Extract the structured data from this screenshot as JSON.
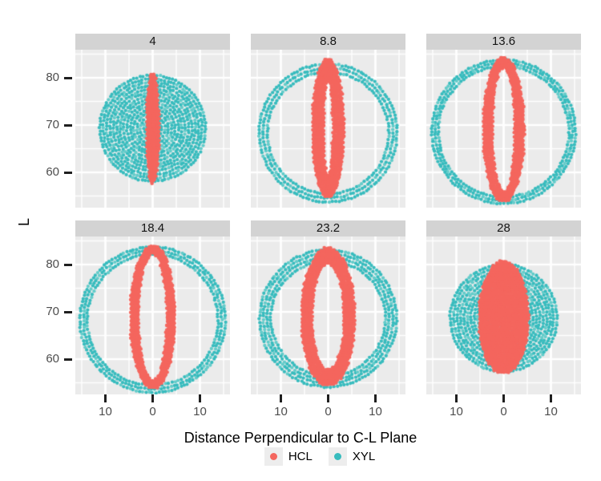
{
  "chart_data": {
    "type": "scatter",
    "description": "Faceted scatter plot of colorspace slice point clouds; two point series (HCL red ellipse bands, XYL teal disks/rings) per facet.",
    "xlabel": "Distance Perpendicular to C-L Plane",
    "ylabel": "L",
    "x_axis": {
      "tick_values": [
        -10,
        0,
        10
      ],
      "tick_labels": [
        "10",
        "0",
        "10"
      ],
      "minor_ticks": [
        -15,
        -5,
        5,
        15
      ],
      "range": [
        -16.4,
        16.4
      ]
    },
    "y_axis": {
      "tick_values": [
        60,
        70,
        80
      ],
      "tick_labels": [
        "60",
        "70",
        "80"
      ],
      "minor_ticks": [
        55,
        65,
        75,
        85
      ],
      "range": [
        52.6,
        85.9
      ]
    },
    "grid": {
      "on": true,
      "major_color": "#FFFFFF",
      "minor_color": "#FFFFFF"
    },
    "legend": {
      "position": "bottom",
      "entries": [
        {
          "label": "HCL",
          "color": "#F4665E"
        },
        {
          "label": "XYL",
          "color": "#38BCBE"
        }
      ]
    },
    "colors": {
      "panel_background": "#EBEBEB",
      "strip_background": "#D3D3D3",
      "gridline": "#FFFFFF",
      "tick_mark": "#1F1F1F",
      "tick_label": "#4D4D4D",
      "legend_key_background": "#EDEDED",
      "hcl_light_variant": "#F4665E",
      "xyl_light_variant": "#64CCCA"
    },
    "panels": [
      {
        "label": "4",
        "xyl": {
          "shape": "disk",
          "r_outer": 11.3,
          "r_inner": 0,
          "cy": 69.3
        },
        "hcl": {
          "shape": "filled-ellipse",
          "rx_outer": 1.4,
          "ry_outer": 11.9,
          "rx_inner": 0,
          "ry_inner": 0,
          "cy": 69.2
        }
      },
      {
        "label": "8.8",
        "xyl": {
          "shape": "ring",
          "r_outer": 14.7,
          "r_inner": 12.6,
          "cy": 68.3
        },
        "hcl": {
          "shape": "ellipse-band",
          "rx_outer": 3.4,
          "ry_outer": 14.8,
          "rx_inner": 0.9,
          "ry_inner": 10.0,
          "cy": 69.3
        }
      },
      {
        "label": "13.6",
        "xyl": {
          "shape": "ring",
          "r_outer": 15.3,
          "r_inner": 13.6,
          "cy": 68.6
        },
        "hcl": {
          "shape": "ellipse-band",
          "rx_outer": 4.4,
          "ry_outer": 15.4,
          "rx_inner": 2.3,
          "ry_inner": 13.0,
          "cy": 69.0
        }
      },
      {
        "label": "18.4",
        "xyl": {
          "shape": "ring",
          "r_outer": 15.5,
          "r_inner": 13.6,
          "cy": 68.3
        },
        "hcl": {
          "shape": "ellipse-band",
          "rx_outer": 4.8,
          "ry_outer": 15.3,
          "rx_inner": 2.9,
          "ry_inner": 13.2,
          "cy": 68.9
        }
      },
      {
        "label": "23.2",
        "xyl": {
          "shape": "ring",
          "r_outer": 14.6,
          "r_inner": 11.9,
          "cy": 68.6
        },
        "hcl": {
          "shape": "ellipse-band",
          "rx_outer": 5.7,
          "ry_outer": 14.7,
          "rx_inner": 3.3,
          "ry_inner": 11.1,
          "cy": 68.9
        }
      },
      {
        "label": "28",
        "xyl": {
          "shape": "disk",
          "r_outer": 11.4,
          "r_inner": 0,
          "cy": 68.7
        },
        "hcl": {
          "shape": "filled-ellipse",
          "rx_outer": 5.3,
          "ry_outer": 12.0,
          "rx_inner": 0,
          "ry_inner": 0,
          "cy": 68.8
        }
      }
    ]
  }
}
